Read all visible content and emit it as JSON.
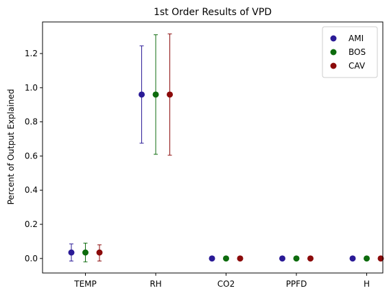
{
  "chart_data": {
    "type": "scatter",
    "title": "1st Order Results of VPD",
    "xlabel": "",
    "ylabel": "Percent of Output Explained",
    "categories": [
      "TEMP",
      "RH",
      "CO2",
      "PPFD",
      "H"
    ],
    "ylim": [
      -0.085,
      1.385
    ],
    "yticks": [
      0.0,
      0.2,
      0.4,
      0.6,
      0.8,
      1.0,
      1.2
    ],
    "ytick_labels": [
      "0.0",
      "0.2",
      "0.4",
      "0.6",
      "0.8",
      "1.0",
      "1.2"
    ],
    "grid": false,
    "legend_position": "top-right",
    "series": [
      {
        "name": "AMI",
        "color": "#2a1a96",
        "values": [
          0.035,
          0.96,
          0.0,
          0.0,
          0.0
        ],
        "err_low": [
          -0.015,
          0.675,
          0.0,
          0.0,
          0.0
        ],
        "err_high": [
          0.085,
          1.245,
          0.0,
          0.0,
          0.0
        ]
      },
      {
        "name": "BOS",
        "color": "#0d6b0d",
        "values": [
          0.035,
          0.96,
          0.0,
          0.0,
          0.0
        ],
        "err_low": [
          -0.02,
          0.61,
          0.0,
          0.0,
          0.0
        ],
        "err_high": [
          0.09,
          1.31,
          0.0,
          0.0,
          0.0
        ]
      },
      {
        "name": "CAV",
        "color": "#8b0a0a",
        "values": [
          0.035,
          0.96,
          0.0,
          0.0,
          0.0
        ],
        "err_low": [
          -0.015,
          0.605,
          0.0,
          0.0,
          0.0
        ],
        "err_high": [
          0.08,
          1.315,
          0.0,
          0.0,
          0.0
        ]
      }
    ]
  }
}
